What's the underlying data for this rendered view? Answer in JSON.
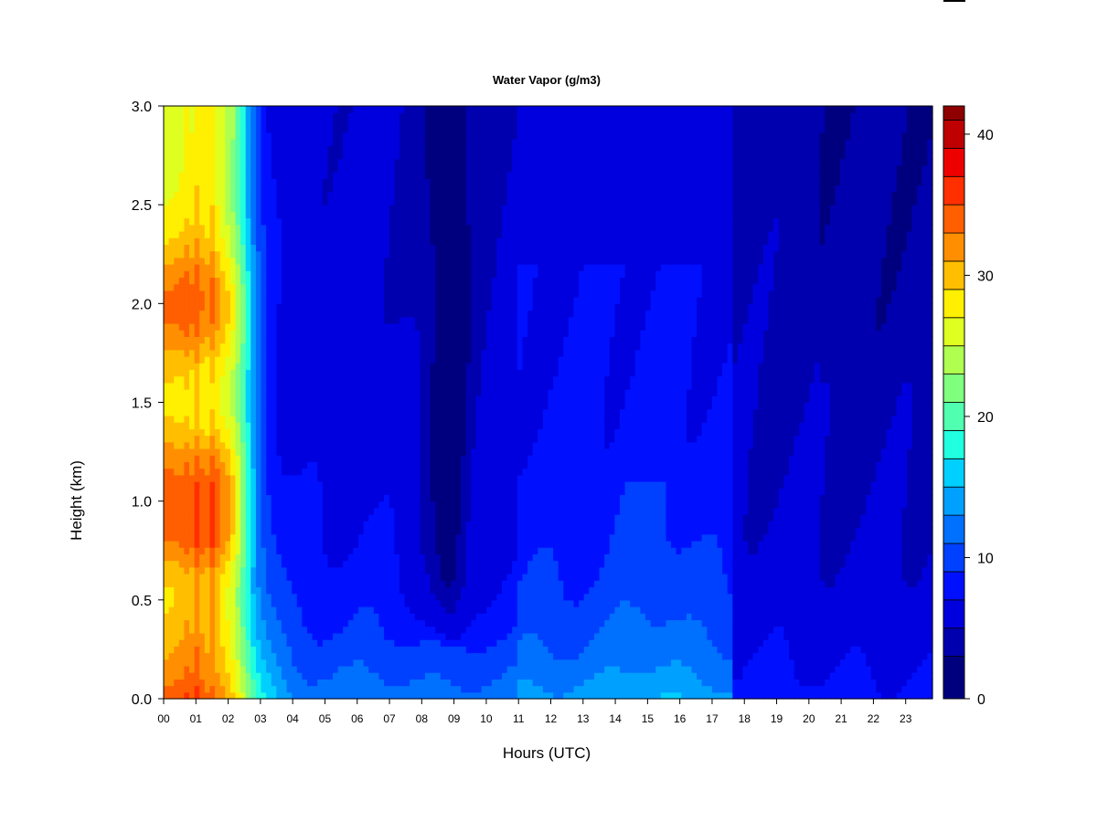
{
  "chart_data": {
    "type": "heatmap",
    "title": "Water Vapor (g/m3)",
    "xlabel": "Hours (UTC)",
    "ylabel": "Height (km)",
    "x_tick_labels": [
      "00",
      "01",
      "02",
      "03",
      "04",
      "05",
      "06",
      "07",
      "08",
      "09",
      "10",
      "11",
      "12",
      "13",
      "14",
      "15",
      "16",
      "17",
      "18",
      "19",
      "20",
      "21",
      "22",
      "23"
    ],
    "y_tick_labels": [
      "0.0",
      "0.5",
      "1.0",
      "1.5",
      "2.0",
      "2.5",
      "3.0"
    ],
    "y_ticks": [
      0.0,
      0.5,
      1.0,
      1.5,
      2.0,
      2.5,
      3.0
    ],
    "xlim": [
      0,
      23.83
    ],
    "ylim": [
      0,
      3.0
    ],
    "colorbar": {
      "range": [
        0,
        42
      ],
      "levels": [
        0,
        3,
        5,
        7,
        9,
        11,
        13,
        15,
        17,
        19,
        21,
        23,
        25,
        27,
        29,
        31,
        33,
        35,
        37,
        39,
        41,
        42
      ],
      "colors": [
        "#00007f",
        "#0000af",
        "#0000df",
        "#0010ff",
        "#0040ff",
        "#0070ff",
        "#00a0ff",
        "#00d0ff",
        "#20ffdf",
        "#50ffaf",
        "#80ff7f",
        "#afff50",
        "#dfff20",
        "#ffef00",
        "#ffbf00",
        "#ff8f00",
        "#ff5f00",
        "#ff2f00",
        "#ef0000",
        "#bf0000",
        "#8f0000"
      ],
      "tick_labels": [
        "0",
        "10",
        "20",
        "30",
        "40"
      ],
      "ticks": [
        0,
        10,
        20,
        30,
        40
      ]
    },
    "grid": false,
    "field_description_points": {
      "hours": [
        0,
        1,
        2,
        3,
        4,
        6,
        8,
        9,
        10,
        12,
        14,
        16,
        17.5,
        18,
        20,
        22,
        23.8
      ],
      "surface_values": [
        27,
        27,
        24,
        19,
        17,
        15,
        15,
        14.5,
        15,
        15,
        15,
        15,
        15,
        10,
        9,
        9,
        9
      ]
    }
  }
}
